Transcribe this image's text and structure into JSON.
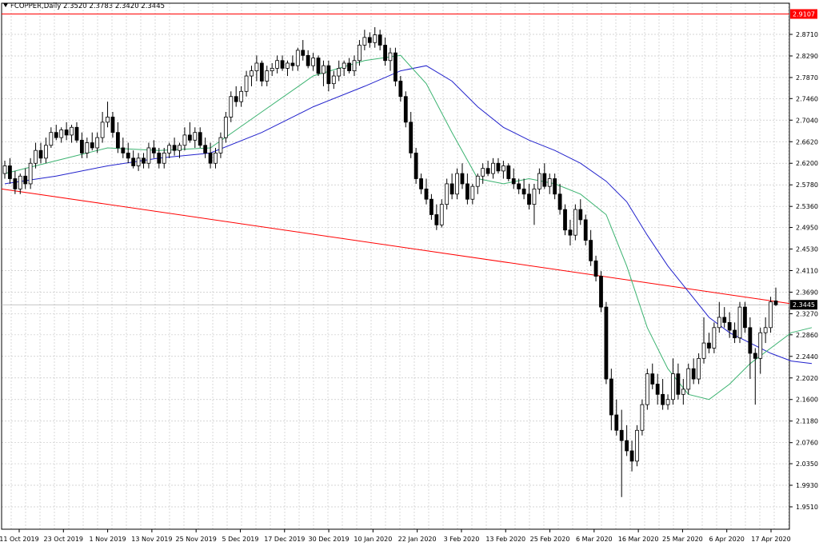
{
  "chart_data": {
    "type": "candlestick",
    "symbol": "FCOPPER",
    "timeframe": "Daily",
    "ohlc_readout": "2.3520 2.3783 2.3420 2.3445",
    "ylim": [
      1.93,
      2.95
    ],
    "grid": true,
    "y_ticks": [
      "2.8710",
      "2.8290",
      "2.7870",
      "2.7460",
      "2.7040",
      "2.6620",
      "2.6200",
      "2.5780",
      "2.5360",
      "2.4950",
      "2.4530",
      "2.4110",
      "2.3690",
      "2.3270",
      "2.2860",
      "2.2440",
      "2.2020",
      "2.1600",
      "2.1180",
      "2.0760",
      "2.0350",
      "1.9930",
      "1.9510"
    ],
    "x_ticks": [
      "11 Oct 2019",
      "23 Oct 2019",
      "1 Nov 2019",
      "13 Nov 2019",
      "25 Nov 2019",
      "5 Dec 2019",
      "17 Dec 2019",
      "30 Dec 2019",
      "10 Jan 2020",
      "22 Jan 2020",
      "3 Feb 2020",
      "13 Feb 2020",
      "25 Feb 2020",
      "6 Mar 2020",
      "16 Mar 2020",
      "25 Mar 2020",
      "6 Apr 2020",
      "17 Apr 2020"
    ],
    "resistance_level": {
      "value": 2.9107,
      "label": "2.9107",
      "color": "#ff0000"
    },
    "current_price": {
      "value": 2.3445,
      "label": "2.3445"
    },
    "trendline": {
      "start": 2.57,
      "end": 2.347,
      "color": "#ff0000"
    },
    "ma_fast_color": "#3cb371",
    "ma_slow_color": "#2222cc",
    "candles": [
      {
        "o": 2.6,
        "h": 2.625,
        "l": 2.59,
        "c": 2.615
      },
      {
        "o": 2.615,
        "h": 2.63,
        "l": 2.58,
        "c": 2.59
      },
      {
        "o": 2.59,
        "h": 2.605,
        "l": 2.56,
        "c": 2.57
      },
      {
        "o": 2.57,
        "h": 2.6,
        "l": 2.56,
        "c": 2.595
      },
      {
        "o": 2.595,
        "h": 2.61,
        "l": 2.57,
        "c": 2.58
      },
      {
        "o": 2.58,
        "h": 2.63,
        "l": 2.57,
        "c": 2.62
      },
      {
        "o": 2.62,
        "h": 2.66,
        "l": 2.61,
        "c": 2.645
      },
      {
        "o": 2.645,
        "h": 2.66,
        "l": 2.62,
        "c": 2.63
      },
      {
        "o": 2.63,
        "h": 2.67,
        "l": 2.62,
        "c": 2.655
      },
      {
        "o": 2.655,
        "h": 2.69,
        "l": 2.65,
        "c": 2.68
      },
      {
        "o": 2.68,
        "h": 2.695,
        "l": 2.665,
        "c": 2.67
      },
      {
        "o": 2.67,
        "h": 2.69,
        "l": 2.66,
        "c": 2.685
      },
      {
        "o": 2.685,
        "h": 2.7,
        "l": 2.665,
        "c": 2.675
      },
      {
        "o": 2.675,
        "h": 2.695,
        "l": 2.66,
        "c": 2.69
      },
      {
        "o": 2.69,
        "h": 2.7,
        "l": 2.66,
        "c": 2.665
      },
      {
        "o": 2.665,
        "h": 2.68,
        "l": 2.63,
        "c": 2.64
      },
      {
        "o": 2.64,
        "h": 2.67,
        "l": 2.63,
        "c": 2.66
      },
      {
        "o": 2.66,
        "h": 2.68,
        "l": 2.645,
        "c": 2.65
      },
      {
        "o": 2.65,
        "h": 2.68,
        "l": 2.64,
        "c": 2.67
      },
      {
        "o": 2.67,
        "h": 2.72,
        "l": 2.66,
        "c": 2.7
      },
      {
        "o": 2.7,
        "h": 2.74,
        "l": 2.69,
        "c": 2.71
      },
      {
        "o": 2.71,
        "h": 2.72,
        "l": 2.67,
        "c": 2.68
      },
      {
        "o": 2.68,
        "h": 2.7,
        "l": 2.64,
        "c": 2.65
      },
      {
        "o": 2.65,
        "h": 2.67,
        "l": 2.63,
        "c": 2.64
      },
      {
        "o": 2.64,
        "h": 2.66,
        "l": 2.62,
        "c": 2.63
      },
      {
        "o": 2.63,
        "h": 2.645,
        "l": 2.61,
        "c": 2.615
      },
      {
        "o": 2.615,
        "h": 2.64,
        "l": 2.605,
        "c": 2.63
      },
      {
        "o": 2.63,
        "h": 2.64,
        "l": 2.61,
        "c": 2.62
      },
      {
        "o": 2.62,
        "h": 2.66,
        "l": 2.61,
        "c": 2.65
      },
      {
        "o": 2.65,
        "h": 2.665,
        "l": 2.63,
        "c": 2.64
      },
      {
        "o": 2.64,
        "h": 2.65,
        "l": 2.61,
        "c": 2.62
      },
      {
        "o": 2.62,
        "h": 2.65,
        "l": 2.61,
        "c": 2.64
      },
      {
        "o": 2.64,
        "h": 2.66,
        "l": 2.63,
        "c": 2.655
      },
      {
        "o": 2.655,
        "h": 2.67,
        "l": 2.635,
        "c": 2.645
      },
      {
        "o": 2.645,
        "h": 2.66,
        "l": 2.63,
        "c": 2.655
      },
      {
        "o": 2.655,
        "h": 2.69,
        "l": 2.645,
        "c": 2.675
      },
      {
        "o": 2.675,
        "h": 2.7,
        "l": 2.66,
        "c": 2.665
      },
      {
        "o": 2.665,
        "h": 2.69,
        "l": 2.65,
        "c": 2.68
      },
      {
        "o": 2.68,
        "h": 2.69,
        "l": 2.65,
        "c": 2.655
      },
      {
        "o": 2.655,
        "h": 2.67,
        "l": 2.63,
        "c": 2.64
      },
      {
        "o": 2.64,
        "h": 2.66,
        "l": 2.61,
        "c": 2.62
      },
      {
        "o": 2.62,
        "h": 2.65,
        "l": 2.61,
        "c": 2.64
      },
      {
        "o": 2.64,
        "h": 2.68,
        "l": 2.63,
        "c": 2.67
      },
      {
        "o": 2.67,
        "h": 2.72,
        "l": 2.66,
        "c": 2.71
      },
      {
        "o": 2.71,
        "h": 2.76,
        "l": 2.7,
        "c": 2.75
      },
      {
        "o": 2.75,
        "h": 2.77,
        "l": 2.73,
        "c": 2.74
      },
      {
        "o": 2.74,
        "h": 2.77,
        "l": 2.73,
        "c": 2.76
      },
      {
        "o": 2.76,
        "h": 2.8,
        "l": 2.75,
        "c": 2.79
      },
      {
        "o": 2.79,
        "h": 2.81,
        "l": 2.77,
        "c": 2.8
      },
      {
        "o": 2.8,
        "h": 2.83,
        "l": 2.78,
        "c": 2.815
      },
      {
        "o": 2.815,
        "h": 2.82,
        "l": 2.77,
        "c": 2.78
      },
      {
        "o": 2.78,
        "h": 2.81,
        "l": 2.77,
        "c": 2.8
      },
      {
        "o": 2.8,
        "h": 2.815,
        "l": 2.79,
        "c": 2.805
      },
      {
        "o": 2.805,
        "h": 2.83,
        "l": 2.795,
        "c": 2.82
      },
      {
        "o": 2.82,
        "h": 2.83,
        "l": 2.8,
        "c": 2.805
      },
      {
        "o": 2.805,
        "h": 2.82,
        "l": 2.79,
        "c": 2.815
      },
      {
        "o": 2.815,
        "h": 2.83,
        "l": 2.8,
        "c": 2.81
      },
      {
        "o": 2.81,
        "h": 2.845,
        "l": 2.8,
        "c": 2.84
      },
      {
        "o": 2.84,
        "h": 2.86,
        "l": 2.82,
        "c": 2.83
      },
      {
        "o": 2.83,
        "h": 2.84,
        "l": 2.805,
        "c": 2.81
      },
      {
        "o": 2.81,
        "h": 2.835,
        "l": 2.8,
        "c": 2.825
      },
      {
        "o": 2.825,
        "h": 2.83,
        "l": 2.79,
        "c": 2.795
      },
      {
        "o": 2.795,
        "h": 2.82,
        "l": 2.77,
        "c": 2.81
      },
      {
        "o": 2.81,
        "h": 2.82,
        "l": 2.76,
        "c": 2.775
      },
      {
        "o": 2.775,
        "h": 2.8,
        "l": 2.765,
        "c": 2.79
      },
      {
        "o": 2.79,
        "h": 2.82,
        "l": 2.78,
        "c": 2.805
      },
      {
        "o": 2.805,
        "h": 2.82,
        "l": 2.79,
        "c": 2.815
      },
      {
        "o": 2.815,
        "h": 2.825,
        "l": 2.795,
        "c": 2.8
      },
      {
        "o": 2.8,
        "h": 2.83,
        "l": 2.79,
        "c": 2.82
      },
      {
        "o": 2.82,
        "h": 2.86,
        "l": 2.81,
        "c": 2.85
      },
      {
        "o": 2.85,
        "h": 2.88,
        "l": 2.84,
        "c": 2.865
      },
      {
        "o": 2.865,
        "h": 2.875,
        "l": 2.845,
        "c": 2.855
      },
      {
        "o": 2.855,
        "h": 2.885,
        "l": 2.845,
        "c": 2.87
      },
      {
        "o": 2.87,
        "h": 2.88,
        "l": 2.84,
        "c": 2.85
      },
      {
        "o": 2.85,
        "h": 2.865,
        "l": 2.81,
        "c": 2.82
      },
      {
        "o": 2.82,
        "h": 2.845,
        "l": 2.8,
        "c": 2.835
      },
      {
        "o": 2.835,
        "h": 2.845,
        "l": 2.77,
        "c": 2.78
      },
      {
        "o": 2.78,
        "h": 2.79,
        "l": 2.74,
        "c": 2.75
      },
      {
        "o": 2.75,
        "h": 2.76,
        "l": 2.69,
        "c": 2.7
      },
      {
        "o": 2.7,
        "h": 2.72,
        "l": 2.63,
        "c": 2.64
      },
      {
        "o": 2.64,
        "h": 2.65,
        "l": 2.58,
        "c": 2.59
      },
      {
        "o": 2.59,
        "h": 2.6,
        "l": 2.56,
        "c": 2.57
      },
      {
        "o": 2.57,
        "h": 2.59,
        "l": 2.54,
        "c": 2.55
      },
      {
        "o": 2.55,
        "h": 2.56,
        "l": 2.51,
        "c": 2.52
      },
      {
        "o": 2.52,
        "h": 2.54,
        "l": 2.49,
        "c": 2.5
      },
      {
        "o": 2.5,
        "h": 2.55,
        "l": 2.495,
        "c": 2.54
      },
      {
        "o": 2.54,
        "h": 2.59,
        "l": 2.53,
        "c": 2.58
      },
      {
        "o": 2.58,
        "h": 2.6,
        "l": 2.55,
        "c": 2.56
      },
      {
        "o": 2.56,
        "h": 2.61,
        "l": 2.55,
        "c": 2.6
      },
      {
        "o": 2.6,
        "h": 2.62,
        "l": 2.57,
        "c": 2.58
      },
      {
        "o": 2.58,
        "h": 2.6,
        "l": 2.54,
        "c": 2.55
      },
      {
        "o": 2.55,
        "h": 2.58,
        "l": 2.54,
        "c": 2.575
      },
      {
        "o": 2.575,
        "h": 2.6,
        "l": 2.56,
        "c": 2.595
      },
      {
        "o": 2.595,
        "h": 2.62,
        "l": 2.58,
        "c": 2.61
      },
      {
        "o": 2.61,
        "h": 2.625,
        "l": 2.595,
        "c": 2.6
      },
      {
        "o": 2.6,
        "h": 2.63,
        "l": 2.59,
        "c": 2.62
      },
      {
        "o": 2.62,
        "h": 2.63,
        "l": 2.6,
        "c": 2.605
      },
      {
        "o": 2.605,
        "h": 2.625,
        "l": 2.59,
        "c": 2.615
      },
      {
        "o": 2.615,
        "h": 2.62,
        "l": 2.585,
        "c": 2.59
      },
      {
        "o": 2.59,
        "h": 2.61,
        "l": 2.57,
        "c": 2.58
      },
      {
        "o": 2.58,
        "h": 2.59,
        "l": 2.56,
        "c": 2.57
      },
      {
        "o": 2.57,
        "h": 2.59,
        "l": 2.55,
        "c": 2.56
      },
      {
        "o": 2.56,
        "h": 2.58,
        "l": 2.53,
        "c": 2.54
      },
      {
        "o": 2.54,
        "h": 2.58,
        "l": 2.5,
        "c": 2.57
      },
      {
        "o": 2.57,
        "h": 2.61,
        "l": 2.56,
        "c": 2.6
      },
      {
        "o": 2.6,
        "h": 2.62,
        "l": 2.57,
        "c": 2.575
      },
      {
        "o": 2.575,
        "h": 2.6,
        "l": 2.56,
        "c": 2.59
      },
      {
        "o": 2.59,
        "h": 2.6,
        "l": 2.55,
        "c": 2.56
      },
      {
        "o": 2.56,
        "h": 2.58,
        "l": 2.52,
        "c": 2.53
      },
      {
        "o": 2.53,
        "h": 2.54,
        "l": 2.48,
        "c": 2.49
      },
      {
        "o": 2.49,
        "h": 2.51,
        "l": 2.46,
        "c": 2.48
      },
      {
        "o": 2.48,
        "h": 2.54,
        "l": 2.47,
        "c": 2.53
      },
      {
        "o": 2.53,
        "h": 2.55,
        "l": 2.5,
        "c": 2.51
      },
      {
        "o": 2.51,
        "h": 2.52,
        "l": 2.46,
        "c": 2.47
      },
      {
        "o": 2.47,
        "h": 2.49,
        "l": 2.42,
        "c": 2.43
      },
      {
        "o": 2.43,
        "h": 2.44,
        "l": 2.39,
        "c": 2.4
      },
      {
        "o": 2.4,
        "h": 2.41,
        "l": 2.33,
        "c": 2.34
      },
      {
        "o": 2.34,
        "h": 2.35,
        "l": 2.19,
        "c": 2.2
      },
      {
        "o": 2.2,
        "h": 2.22,
        "l": 2.1,
        "c": 2.13
      },
      {
        "o": 2.13,
        "h": 2.16,
        "l": 2.09,
        "c": 2.1
      },
      {
        "o": 2.1,
        "h": 2.14,
        "l": 1.97,
        "c": 2.08
      },
      {
        "o": 2.08,
        "h": 2.11,
        "l": 2.05,
        "c": 2.06
      },
      {
        "o": 2.06,
        "h": 2.08,
        "l": 2.02,
        "c": 2.04
      },
      {
        "o": 2.04,
        "h": 2.11,
        "l": 2.03,
        "c": 2.1
      },
      {
        "o": 2.1,
        "h": 2.16,
        "l": 2.09,
        "c": 2.15
      },
      {
        "o": 2.15,
        "h": 2.22,
        "l": 2.14,
        "c": 2.21
      },
      {
        "o": 2.21,
        "h": 2.23,
        "l": 2.18,
        "c": 2.19
      },
      {
        "o": 2.19,
        "h": 2.21,
        "l": 2.15,
        "c": 2.17
      },
      {
        "o": 2.17,
        "h": 2.2,
        "l": 2.14,
        "c": 2.15
      },
      {
        "o": 2.15,
        "h": 2.17,
        "l": 2.14,
        "c": 2.16
      },
      {
        "o": 2.16,
        "h": 2.24,
        "l": 2.15,
        "c": 2.21
      },
      {
        "o": 2.21,
        "h": 2.23,
        "l": 2.16,
        "c": 2.17
      },
      {
        "o": 2.17,
        "h": 2.2,
        "l": 2.15,
        "c": 2.18
      },
      {
        "o": 2.18,
        "h": 2.23,
        "l": 2.17,
        "c": 2.22
      },
      {
        "o": 2.22,
        "h": 2.24,
        "l": 2.19,
        "c": 2.2
      },
      {
        "o": 2.2,
        "h": 2.25,
        "l": 2.19,
        "c": 2.24
      },
      {
        "o": 2.24,
        "h": 2.32,
        "l": 2.23,
        "c": 2.27
      },
      {
        "o": 2.27,
        "h": 2.29,
        "l": 2.25,
        "c": 2.26
      },
      {
        "o": 2.26,
        "h": 2.31,
        "l": 2.25,
        "c": 2.3
      },
      {
        "o": 2.3,
        "h": 2.35,
        "l": 2.29,
        "c": 2.32
      },
      {
        "o": 2.32,
        "h": 2.34,
        "l": 2.3,
        "c": 2.31
      },
      {
        "o": 2.31,
        "h": 2.33,
        "l": 2.28,
        "c": 2.295
      },
      {
        "o": 2.295,
        "h": 2.31,
        "l": 2.27,
        "c": 2.28
      },
      {
        "o": 2.28,
        "h": 2.35,
        "l": 2.27,
        "c": 2.34
      },
      {
        "o": 2.34,
        "h": 2.35,
        "l": 2.29,
        "c": 2.3
      },
      {
        "o": 2.3,
        "h": 2.32,
        "l": 2.2,
        "c": 2.25
      },
      {
        "o": 2.25,
        "h": 2.26,
        "l": 2.15,
        "c": 2.24
      },
      {
        "o": 2.24,
        "h": 2.3,
        "l": 2.21,
        "c": 2.29
      },
      {
        "o": 2.29,
        "h": 2.32,
        "l": 2.27,
        "c": 2.3
      },
      {
        "o": 2.3,
        "h": 2.36,
        "l": 2.29,
        "c": 2.35
      },
      {
        "o": 2.352,
        "h": 2.378,
        "l": 2.342,
        "c": 2.3445
      }
    ],
    "ma_fast": [
      [
        0,
        2.6
      ],
      [
        10,
        2.625
      ],
      [
        20,
        2.65
      ],
      [
        30,
        2.645
      ],
      [
        40,
        2.65
      ],
      [
        50,
        2.72
      ],
      [
        60,
        2.79
      ],
      [
        70,
        2.82
      ],
      [
        77,
        2.83
      ],
      [
        82,
        2.775
      ],
      [
        87,
        2.68
      ],
      [
        92,
        2.59
      ],
      [
        97,
        2.58
      ],
      [
        102,
        2.59
      ],
      [
        107,
        2.58
      ],
      [
        112,
        2.56
      ],
      [
        117,
        2.52
      ],
      [
        121,
        2.42
      ],
      [
        125,
        2.3
      ],
      [
        129,
        2.22
      ],
      [
        133,
        2.17
      ],
      [
        137,
        2.16
      ],
      [
        141,
        2.19
      ],
      [
        145,
        2.23
      ],
      [
        149,
        2.26
      ],
      [
        153,
        2.29
      ],
      [
        157,
        2.3
      ]
    ],
    "ma_slow": [
      [
        0,
        2.58
      ],
      [
        10,
        2.595
      ],
      [
        20,
        2.615
      ],
      [
        30,
        2.63
      ],
      [
        40,
        2.64
      ],
      [
        50,
        2.68
      ],
      [
        60,
        2.73
      ],
      [
        70,
        2.77
      ],
      [
        77,
        2.8
      ],
      [
        82,
        2.81
      ],
      [
        87,
        2.78
      ],
      [
        92,
        2.73
      ],
      [
        97,
        2.69
      ],
      [
        102,
        2.665
      ],
      [
        107,
        2.645
      ],
      [
        112,
        2.62
      ],
      [
        117,
        2.585
      ],
      [
        121,
        2.545
      ],
      [
        125,
        2.48
      ],
      [
        129,
        2.42
      ],
      [
        133,
        2.37
      ],
      [
        137,
        2.32
      ],
      [
        141,
        2.29
      ],
      [
        145,
        2.27
      ],
      [
        149,
        2.25
      ],
      [
        153,
        2.235
      ],
      [
        157,
        2.23
      ]
    ]
  }
}
